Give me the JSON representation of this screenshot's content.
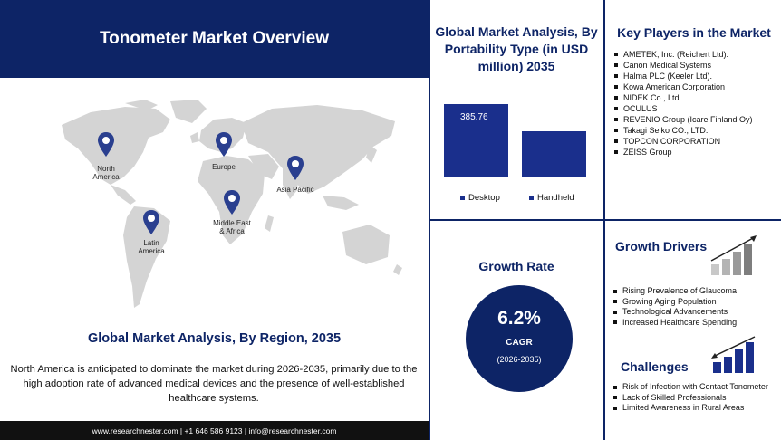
{
  "header": {
    "title": "Tonometer Market Overview"
  },
  "region_section": {
    "title": "Global Market Analysis, By Region, 2035",
    "description": "North America is anticipated to dominate the market during 2026-2035, primarily due to the high adoption rate of advanced medical devices and the presence of well-established healthcare systems.",
    "regions": [
      "North America",
      "Europe",
      "Asia Pacific",
      "Middle East & Africa",
      "Latin America"
    ]
  },
  "footer": {
    "text": "www.researchnester.com | +1 646 586 9123 | info@researchnester.com"
  },
  "portability": {
    "title": "Global Market Analysis, By Portability Type (in USD million) 2035",
    "desktop_label": "Desktop",
    "handheld_label": "Handheld",
    "desktop_value_label": "385.76"
  },
  "chart_data": {
    "type": "bar",
    "categories": [
      "Desktop",
      "Handheld"
    ],
    "values": [
      385.76,
      240
    ],
    "title": "Global Market Analysis, By Portability Type (in USD million) 2035"
  },
  "key_players": {
    "title": "Key Players in the Market",
    "items": [
      "AMETEK, Inc. (Reichert Ltd).",
      "Canon Medical Systems",
      "Halma PLC (Keeler Ltd).",
      "Kowa American Corporation",
      "NIDEK Co., Ltd.",
      "OCULUS",
      "REVENIO Group (Icare Finland Oy)",
      "Takagi Seiko CO., LTD.",
      "TOPCON CORPORATION",
      "ZEISS Group"
    ]
  },
  "growth_rate": {
    "title": "Growth Rate",
    "value": "6.2%",
    "label": "CAGR",
    "period": "(2026-2035)"
  },
  "growth_drivers": {
    "title": "Growth Drivers",
    "items": [
      "Rising Prevalence of Glaucoma",
      "Growing Aging Population",
      "Technological Advancements",
      "Increased Healthcare Spending"
    ]
  },
  "challenges": {
    "title": "Challenges",
    "items": [
      "Risk of Infection with Contact Tonometer",
      "Lack of Skilled Professionals",
      "Limited Awareness in Rural Areas"
    ]
  },
  "colors": {
    "navy": "#0d2466",
    "bar": "#1a2f8c",
    "map_gray": "#d3d3d3"
  }
}
